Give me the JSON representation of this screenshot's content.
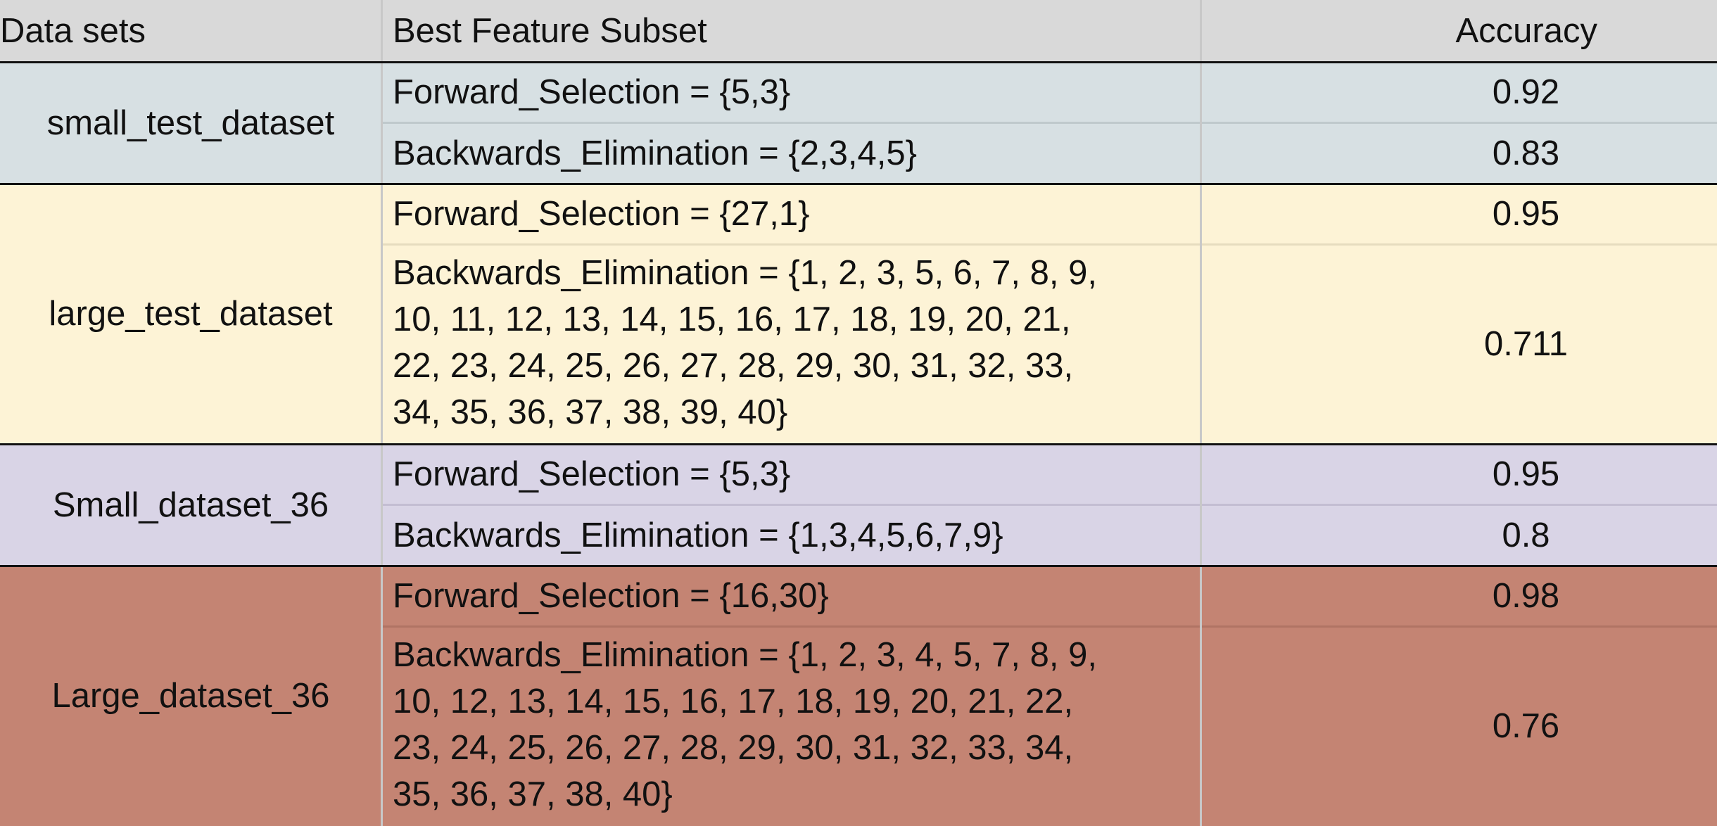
{
  "table": {
    "headers": {
      "datasets": "Data sets",
      "subset": "Best Feature Subset",
      "accuracy": "Accuracy"
    },
    "groups": [
      {
        "dataset": "small_test_dataset",
        "color": "#d7e0e3",
        "rows": [
          {
            "subset": "Forward_Selection = {5,3}",
            "accuracy": "0.92"
          },
          {
            "subset": "Backwards_Elimination = {2,3,4,5}",
            "accuracy": "0.83"
          }
        ]
      },
      {
        "dataset": "large_test_dataset",
        "color": "#fdf3d6",
        "rows": [
          {
            "subset": "Forward_Selection = {27,1}",
            "accuracy": "0.95"
          },
          {
            "subset_lines": [
              "Backwards_Elimination = {1, 2, 3, 5, 6, 7, 8, 9,",
              "10, 11, 12, 13, 14, 15, 16, 17, 18, 19, 20, 21,",
              "22, 23, 24, 25, 26, 27, 28, 29, 30, 31, 32, 33,",
              "34, 35, 36, 37, 38, 39, 40}"
            ],
            "accuracy": "0.711"
          }
        ]
      },
      {
        "dataset": "Small_dataset_36",
        "color": "#d9d4e6",
        "rows": [
          {
            "subset": "Forward_Selection = {5,3}",
            "accuracy": "0.95"
          },
          {
            "subset": "Backwards_Elimination = {1,3,4,5,6,7,9}",
            "accuracy": "0.8"
          }
        ]
      },
      {
        "dataset": "Large_dataset_36",
        "color": "#c48473",
        "rows": [
          {
            "subset": "Forward_Selection = {16,30}",
            "accuracy": "0.98"
          },
          {
            "subset_lines": [
              "Backwards_Elimination = {1, 2, 3, 4, 5, 7, 8, 9,",
              "10, 12, 13, 14, 15, 16, 17, 18, 19, 20, 21, 22,",
              "23, 24, 25, 26, 27, 28, 29, 30, 31, 32, 33, 34,",
              "35, 36, 37, 38, 40}"
            ],
            "accuracy": "0.76"
          }
        ]
      }
    ]
  }
}
